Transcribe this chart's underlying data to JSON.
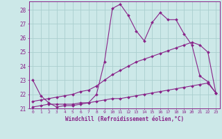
{
  "xlabel": "Windchill (Refroidissement éolien,°C)",
  "x": [
    0,
    1,
    2,
    3,
    4,
    5,
    6,
    7,
    8,
    9,
    10,
    11,
    12,
    13,
    14,
    15,
    16,
    17,
    18,
    19,
    20,
    21,
    22,
    23
  ],
  "line1": [
    23.0,
    21.9,
    21.4,
    21.1,
    21.2,
    21.2,
    21.3,
    21.4,
    22.0,
    24.3,
    28.1,
    28.4,
    27.6,
    26.5,
    25.8,
    27.1,
    27.8,
    27.3,
    27.3,
    26.3,
    25.5,
    23.3,
    22.9,
    22.1
  ],
  "line2": [
    21.5,
    21.6,
    21.7,
    21.8,
    21.9,
    22.0,
    22.2,
    22.3,
    22.6,
    23.0,
    23.4,
    23.7,
    24.0,
    24.3,
    24.5,
    24.7,
    24.9,
    25.1,
    25.3,
    25.5,
    25.7,
    25.5,
    25.0,
    22.1
  ],
  "line3": [
    21.1,
    21.2,
    21.3,
    21.3,
    21.3,
    21.3,
    21.4,
    21.4,
    21.5,
    21.6,
    21.7,
    21.7,
    21.8,
    21.9,
    22.0,
    22.1,
    22.2,
    22.3,
    22.4,
    22.5,
    22.6,
    22.7,
    22.8,
    22.1
  ],
  "line_color": "#882288",
  "bg_color": "#cce8e8",
  "grid_color": "#aacece",
  "axis_color": "#882288",
  "ylim_min": 21,
  "ylim_max": 28.6,
  "xlim_min": -0.5,
  "xlim_max": 23.5,
  "yticks": [
    21,
    22,
    23,
    24,
    25,
    26,
    27,
    28
  ],
  "marker": "D",
  "markersize": 2.0,
  "linewidth": 0.8
}
